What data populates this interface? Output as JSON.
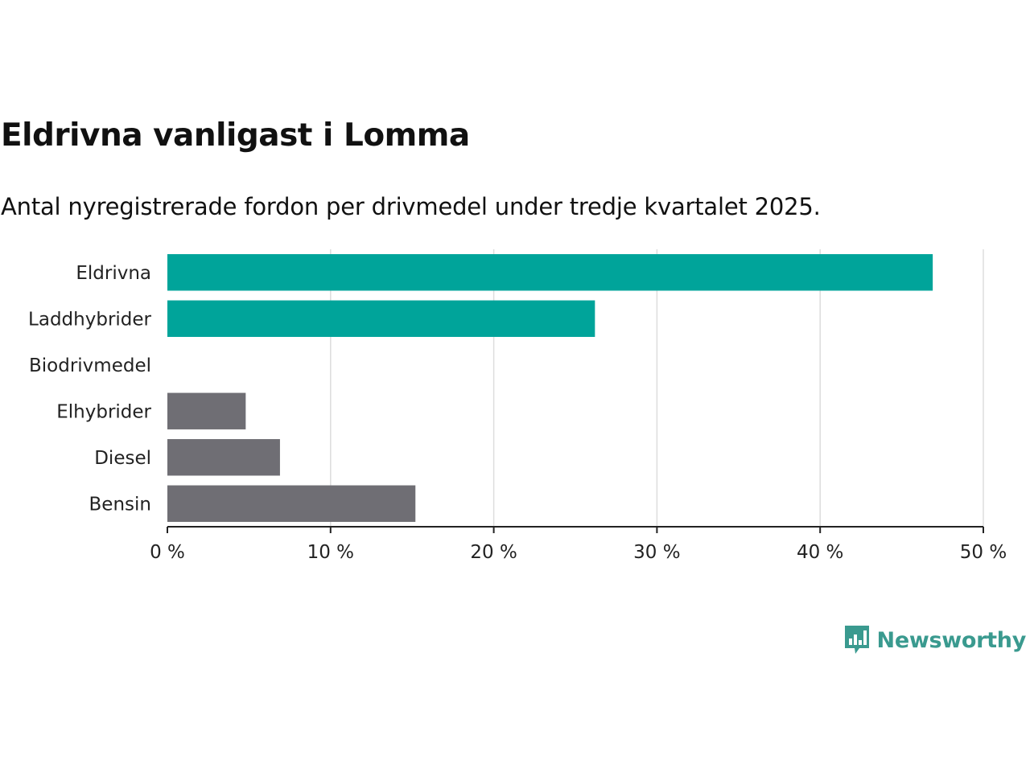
{
  "title": "Eldrivna vanligast i Lomma",
  "subtitle": "Antal nyregistrerade fordon per drivmedel under tredje kvartalet 2025.",
  "brand": {
    "name": "Newsworthy",
    "color": "#3a9a8f"
  },
  "colors": {
    "highlight": "#00a49a",
    "other": "#6f6e74",
    "grid": "#dddddd",
    "axis": "#222222"
  },
  "chart_data": {
    "type": "bar",
    "orientation": "horizontal",
    "title": "Eldrivna vanligast i Lomma",
    "subtitle": "Antal nyregistrerade fordon per drivmedel under tredje kvartalet 2025.",
    "xlabel": "",
    "ylabel": "",
    "unit": "%",
    "xlim": [
      0,
      50
    ],
    "ticks": [
      0,
      10,
      20,
      30,
      40,
      50
    ],
    "tick_labels": [
      "0 %",
      "10 %",
      "20 %",
      "30 %",
      "40 %",
      "50 %"
    ],
    "grid": true,
    "categories": [
      "Eldrivna",
      "Laddhybrider",
      "Biodrivmedel",
      "Elhybrider",
      "Diesel",
      "Bensin"
    ],
    "values": [
      46.9,
      26.2,
      0,
      4.8,
      6.9,
      15.2
    ],
    "highlight": [
      true,
      true,
      true,
      false,
      false,
      false
    ]
  }
}
